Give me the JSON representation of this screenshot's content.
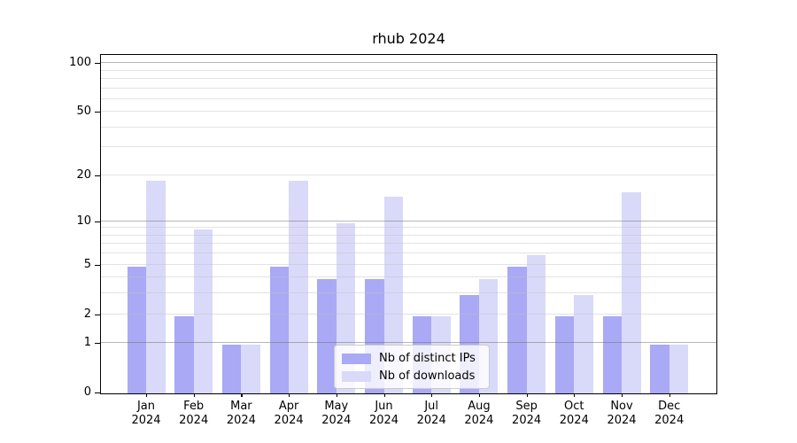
{
  "chart_data": {
    "type": "bar",
    "title": "rhub 2024",
    "year": "2024",
    "categories": [
      "Jan",
      "Feb",
      "Mar",
      "Apr",
      "May",
      "Jun",
      "Jul",
      "Aug",
      "Sep",
      "Oct",
      "Nov",
      "Dec"
    ],
    "series": [
      {
        "name": "Nb of distinct IPs",
        "color": "#a9a9f5",
        "values": [
          5,
          2,
          1,
          5,
          4,
          4,
          2,
          3,
          5,
          2,
          2,
          1
        ]
      },
      {
        "name": "Nb of downloads",
        "color": "#d9d9f9",
        "values": [
          19,
          9,
          1,
          19,
          10,
          15,
          2,
          4,
          6,
          3,
          16,
          1
        ]
      }
    ],
    "xlabel": "",
    "ylabel": "",
    "scale": "log1p",
    "ylim": [
      0,
      112
    ],
    "yticks": {
      "labels": [
        "0",
        "1",
        "2",
        "5",
        "10",
        "20",
        "50",
        "100"
      ],
      "values": [
        0,
        1,
        2,
        5,
        10,
        20,
        50,
        100
      ]
    },
    "major_gridlines": [
      1,
      10,
      100
    ],
    "minor_gridlines": [
      2,
      3,
      4,
      5,
      6,
      7,
      8,
      9,
      20,
      30,
      40,
      50,
      60,
      70,
      80,
      90
    ],
    "grid": true,
    "legend_position": "lower center",
    "colors": {
      "background": "#ffffff",
      "axis": "#000000",
      "text": "#000000",
      "major_grid": "#b0b0b0",
      "minor_grid": "#e8e8e8",
      "legend_border": "#cccccc"
    }
  }
}
